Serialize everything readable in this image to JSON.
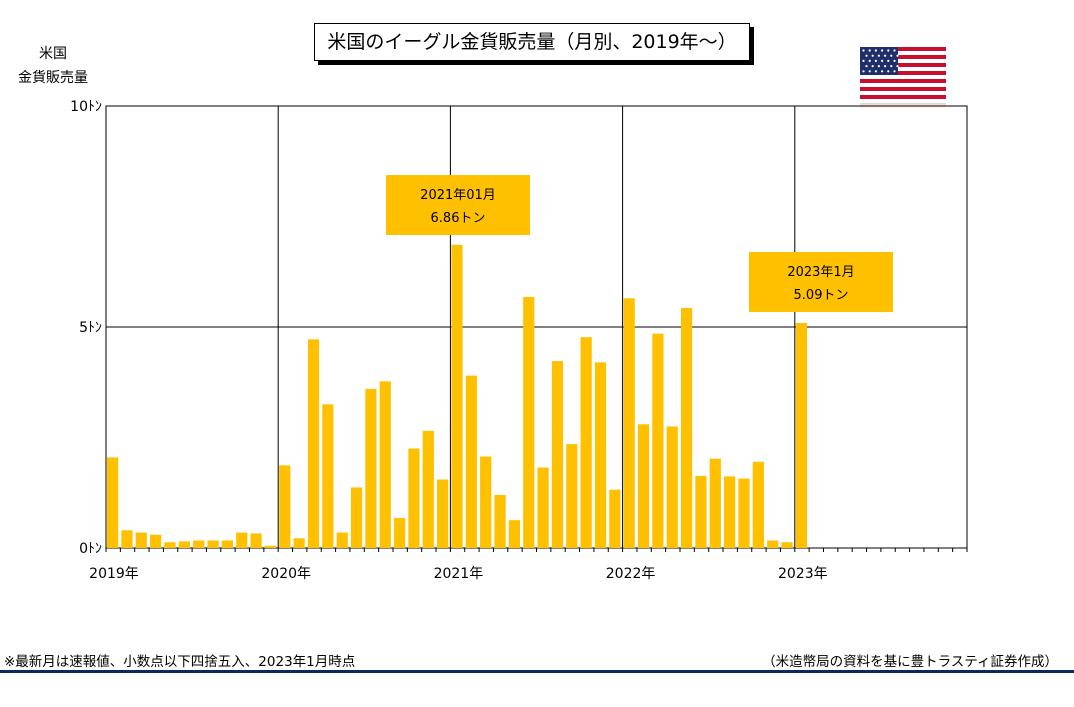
{
  "title": "米国のイーグル金貨販売量（月別、2019年〜）",
  "y_axis_label": [
    "米国",
    "金貨販売量"
  ],
  "footnote": "※最新月は速報値、小数点以下四捨五入、2023年1月時点",
  "source": "（米造幣局の資料を基に豊トラスティ証券作成）",
  "flag_icon": "us-flag-icon",
  "colors": {
    "bar": "#FFC000",
    "callout": "#FFC000",
    "grid": "#000000",
    "rule": "#0b2a5c"
  },
  "chart_data": {
    "type": "bar",
    "ylim": [
      0,
      10
    ],
    "y_ticks": [
      {
        "value": 0,
        "label": "0ﾄﾝ"
      },
      {
        "value": 5,
        "label": "5ﾄﾝ"
      },
      {
        "value": 10,
        "label": "10ﾄﾝ"
      }
    ],
    "x_ticks": [
      "2019年",
      "2020年",
      "2021年",
      "2022年",
      "2023年"
    ],
    "months_per_year": 12,
    "total_slots": 60,
    "values": [
      2.05,
      0.4,
      0.35,
      0.3,
      0.13,
      0.15,
      0.17,
      0.17,
      0.17,
      0.35,
      0.33,
      0.05,
      1.87,
      0.22,
      4.72,
      3.25,
      0.35,
      1.37,
      3.6,
      3.77,
      0.68,
      2.25,
      2.65,
      1.55,
      6.86,
      3.9,
      2.07,
      1.2,
      0.63,
      5.68,
      1.82,
      4.23,
      2.35,
      4.77,
      4.2,
      1.32,
      5.65,
      2.8,
      4.85,
      2.75,
      5.43,
      1.63,
      2.02,
      1.62,
      1.57,
      1.95,
      0.17,
      0.13,
      5.09
    ],
    "grid": true,
    "annotations": [
      {
        "text": [
          "2021年01月",
          "6.86トン"
        ],
        "index": 24
      },
      {
        "text": [
          "2023年1月",
          "5.09トン"
        ],
        "index": 48
      }
    ]
  }
}
